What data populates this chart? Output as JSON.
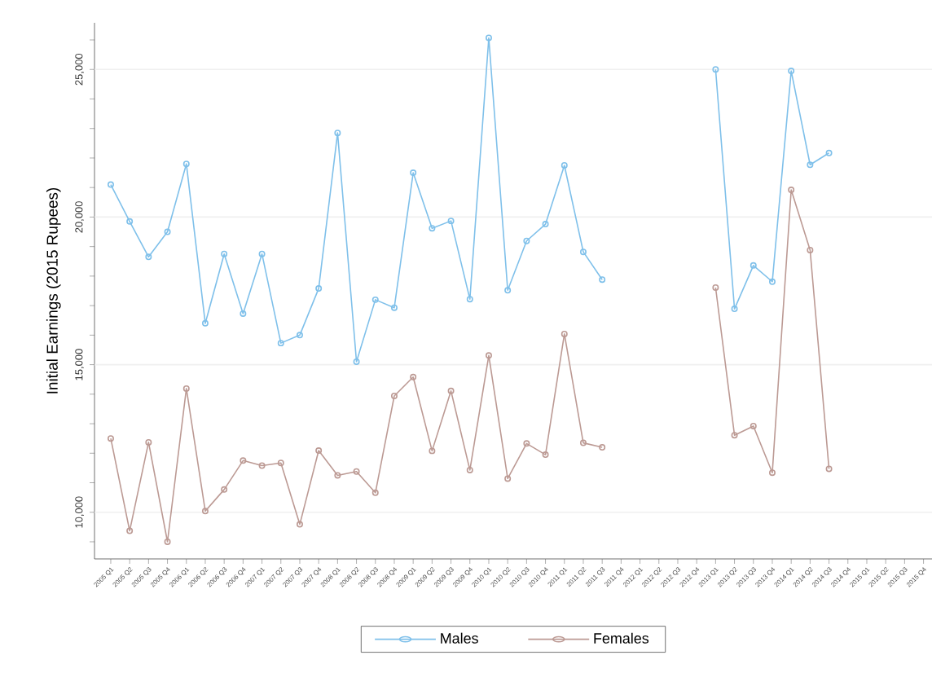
{
  "chart_data": {
    "type": "line",
    "ylabel": "Initial Earnings (2015 Rupees)",
    "categories": [
      "2005 Q1",
      "2005 Q2",
      "2005 Q3",
      "2005 Q4",
      "2006 Q1",
      "2006 Q2",
      "2006 Q3",
      "2006 Q4",
      "2007 Q1",
      "2007 Q2",
      "2007 Q3",
      "2007 Q4",
      "2008 Q1",
      "2008 Q2",
      "2008 Q3",
      "2008 Q4",
      "2009 Q1",
      "2009 Q2",
      "2009 Q3",
      "2009 Q4",
      "2010 Q1",
      "2010 Q2",
      "2010 Q3",
      "2010 Q4",
      "2011 Q1",
      "2011 Q2",
      "2011 Q3",
      "2011 Q4",
      "2012 Q1",
      "2012 Q2",
      "2012 Q3",
      "2012 Q4",
      "2013 Q1",
      "2013 Q2",
      "2013 Q3",
      "2013 Q4",
      "2014 Q1",
      "2014 Q2",
      "2014 Q3",
      "2014 Q4",
      "2015 Q1",
      "2015 Q2",
      "2015 Q3",
      "2015 Q4"
    ],
    "series": [
      {
        "name": "Males",
        "color": "#7fc0ea",
        "values": [
          21100,
          19850,
          18650,
          19500,
          21800,
          16400,
          18750,
          16730,
          18750,
          15730,
          16000,
          17580,
          22850,
          15100,
          17200,
          16930,
          21500,
          19620,
          19870,
          17220,
          26070,
          17520,
          19190,
          19760,
          21750,
          18820,
          17880,
          null,
          null,
          null,
          null,
          null,
          25000,
          16890,
          18360,
          17810,
          24950,
          21770,
          22170,
          null,
          null,
          null,
          null,
          null
        ]
      },
      {
        "name": "Females",
        "color": "#bc9a94",
        "values": [
          12500,
          9370,
          12370,
          9000,
          14190,
          10040,
          10770,
          11750,
          11580,
          11670,
          9590,
          12090,
          11250,
          11380,
          10660,
          13940,
          14580,
          12080,
          14110,
          11430,
          15310,
          11140,
          12330,
          11950,
          16040,
          12350,
          12200,
          null,
          null,
          null,
          null,
          null,
          17610,
          12610,
          12920,
          11340,
          20920,
          18880,
          11470,
          null,
          null,
          null,
          null,
          null
        ]
      }
    ],
    "ylim": [
      8420,
      26580
    ],
    "yticks": [
      {
        "value": 9000,
        "label": null
      },
      {
        "value": 10000,
        "label": "10,000"
      },
      {
        "value": 11000,
        "label": null
      },
      {
        "value": 12000,
        "label": null
      },
      {
        "value": 13000,
        "label": null
      },
      {
        "value": 14000,
        "label": null
      },
      {
        "value": 15000,
        "label": "15,000"
      },
      {
        "value": 16000,
        "label": null
      },
      {
        "value": 17000,
        "label": null
      },
      {
        "value": 18000,
        "label": null
      },
      {
        "value": 19000,
        "label": null
      },
      {
        "value": 20000,
        "label": "20,000"
      },
      {
        "value": 21000,
        "label": null
      },
      {
        "value": 22000,
        "label": null
      },
      {
        "value": 23000,
        "label": null
      },
      {
        "value": 24000,
        "label": null
      },
      {
        "value": 25000,
        "label": "25,000"
      },
      {
        "value": 26000,
        "label": null
      }
    ],
    "grid": "y",
    "legend": "bottom",
    "marker": "circle",
    "line_style": "solid"
  }
}
